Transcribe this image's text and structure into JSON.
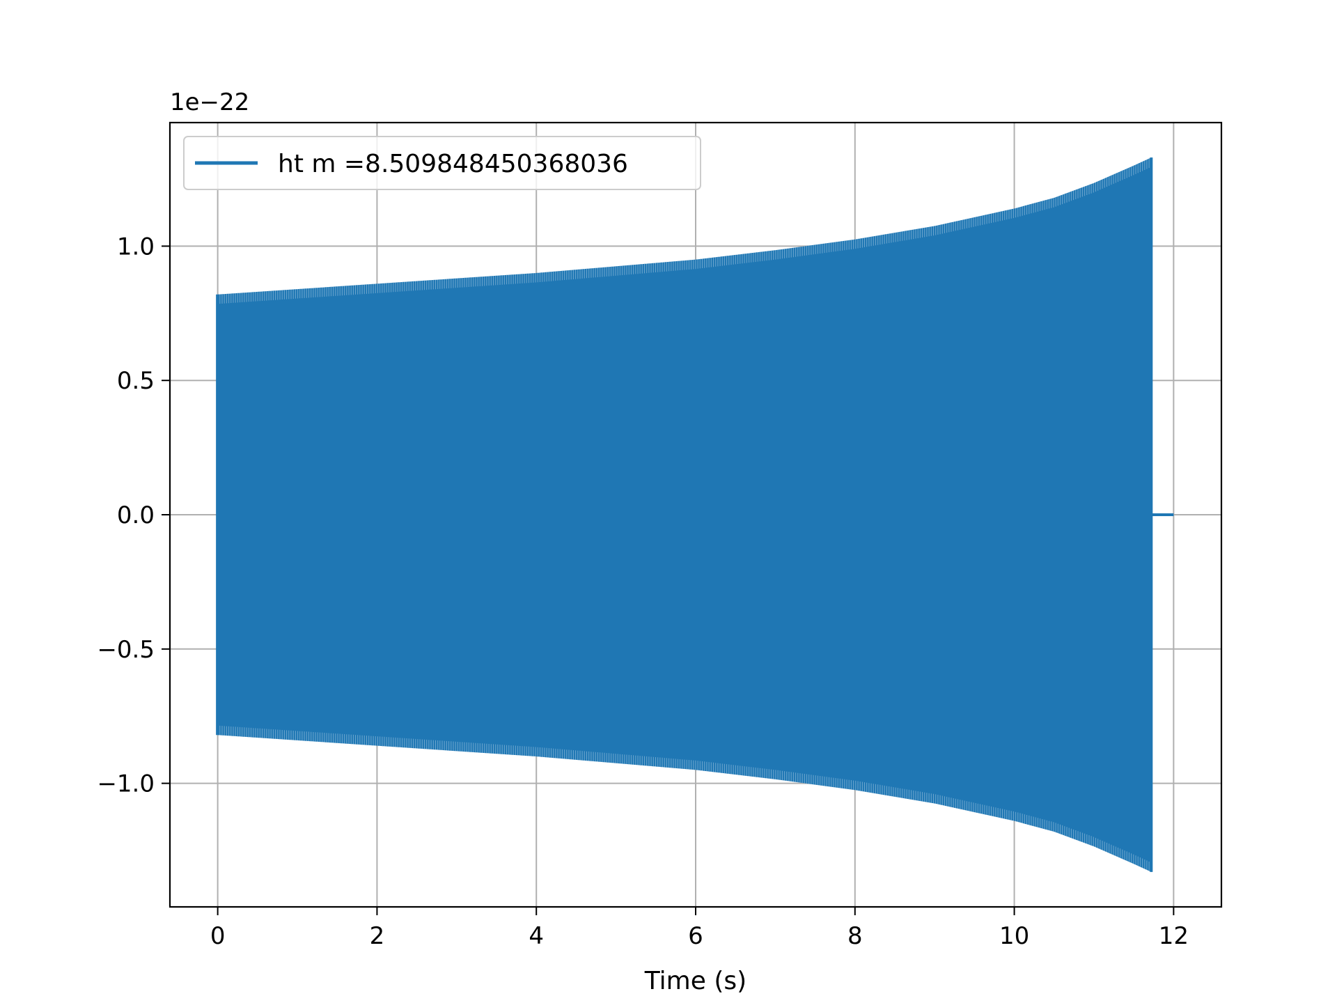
{
  "chart_data": {
    "type": "line",
    "title": "",
    "xlabel": "Time (s)",
    "ylabel": "",
    "y_offset_text": "1e−22",
    "xlim": [
      -0.6,
      12.6
    ],
    "ylim": [
      -1.46,
      1.46
    ],
    "x_ticks": [
      0,
      2,
      4,
      6,
      8,
      10,
      12
    ],
    "x_tick_labels": [
      "0",
      "2",
      "4",
      "6",
      "8",
      "10",
      "12"
    ],
    "y_ticks": [
      -1.0,
      -0.5,
      0.0,
      0.5,
      1.0
    ],
    "y_tick_labels": [
      "−1.0",
      "−0.5",
      "0.0",
      "0.5",
      "1.0"
    ],
    "grid": true,
    "legend_position": "top-left",
    "series": [
      {
        "name": "ht m =8.509848450368036",
        "color": "#1f77b4",
        "chirp_start_x": 0.0,
        "chirp_end_x": 11.72,
        "flat_end_x": 12.0,
        "envelope": {
          "x": [
            0,
            1,
            2,
            3,
            4,
            5,
            6,
            7,
            8,
            9,
            10,
            10.5,
            11,
            11.5,
            11.72
          ],
          "amplitude": [
            0.82,
            0.84,
            0.86,
            0.88,
            0.9,
            0.925,
            0.95,
            0.985,
            1.025,
            1.075,
            1.14,
            1.18,
            1.235,
            1.3,
            1.33
          ]
        }
      }
    ]
  }
}
